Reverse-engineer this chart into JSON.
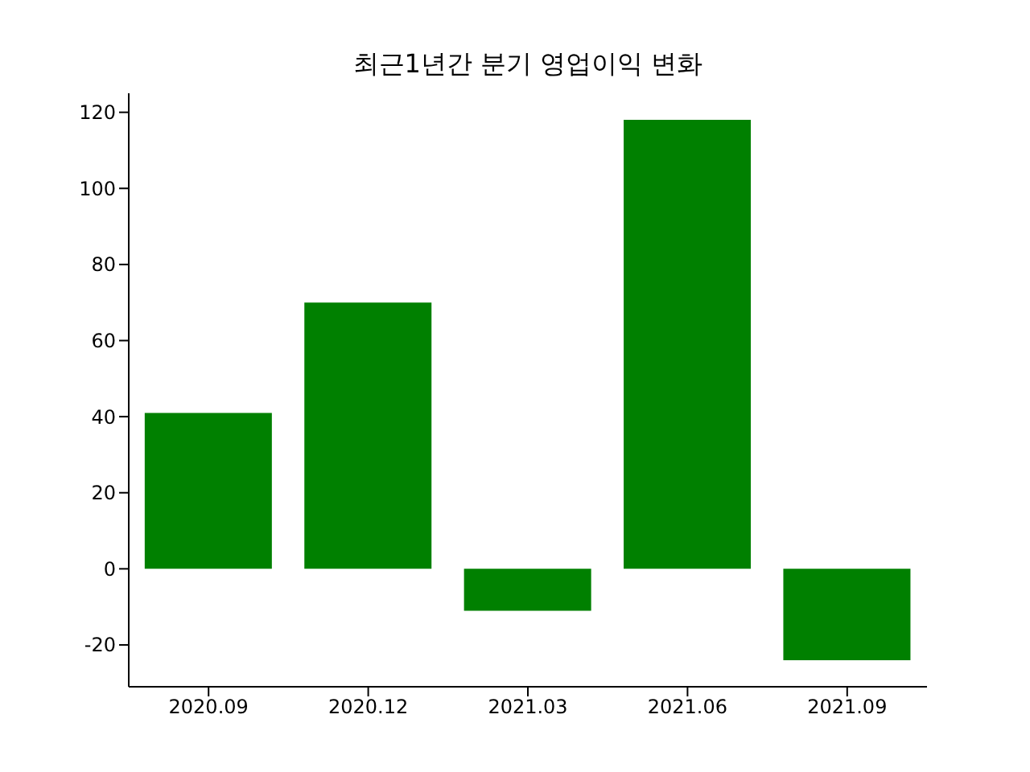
{
  "chart_data": {
    "type": "bar",
    "title": "최근1년간 분기 영업이익 변화",
    "categories": [
      "2020.09",
      "2020.12",
      "2021.03",
      "2021.06",
      "2021.09"
    ],
    "values": [
      41,
      70,
      -11,
      118,
      -24
    ],
    "color": "#008000",
    "ylim": [
      -31,
      125
    ],
    "yticks": [
      -20,
      0,
      20,
      40,
      60,
      80,
      100,
      120
    ],
    "grid": false,
    "legend": false
  }
}
